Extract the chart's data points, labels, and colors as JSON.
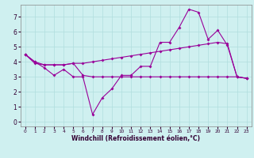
{
  "xlabel": "Windchill (Refroidissement éolien,°C)",
  "background_color": "#cff0f0",
  "grid_color": "#b0dede",
  "line_color": "#990099",
  "xlim": [
    -0.5,
    23.5
  ],
  "ylim": [
    -0.3,
    7.8
  ],
  "xticks": [
    0,
    1,
    2,
    3,
    4,
    5,
    6,
    7,
    8,
    9,
    10,
    11,
    12,
    13,
    14,
    15,
    16,
    17,
    18,
    19,
    20,
    21,
    22,
    23
  ],
  "yticks": [
    0,
    1,
    2,
    3,
    4,
    5,
    6,
    7
  ],
  "line1_x": [
    0,
    1,
    2,
    3,
    4,
    5,
    6,
    7,
    8,
    9,
    10,
    11,
    12,
    13,
    14,
    15,
    16,
    17,
    18,
    19,
    20,
    21,
    22,
    23
  ],
  "line1_y": [
    4.5,
    4.0,
    3.6,
    3.1,
    3.5,
    3.0,
    3.0,
    0.5,
    1.6,
    2.2,
    3.1,
    3.1,
    3.7,
    3.7,
    5.3,
    5.3,
    6.3,
    7.5,
    7.3,
    5.5,
    6.1,
    5.1,
    3.0,
    2.9
  ],
  "line2_x": [
    0,
    1,
    2,
    3,
    4,
    5,
    6,
    7,
    8,
    9,
    10,
    11,
    12,
    13,
    14,
    15,
    16,
    17,
    18,
    19,
    20,
    21,
    22,
    23
  ],
  "line2_y": [
    4.5,
    3.9,
    3.8,
    3.8,
    3.8,
    3.9,
    3.9,
    4.0,
    4.1,
    4.2,
    4.3,
    4.4,
    4.5,
    4.6,
    4.7,
    4.8,
    4.9,
    5.0,
    5.1,
    5.2,
    5.3,
    5.2,
    3.0,
    2.9
  ],
  "line3_x": [
    0,
    1,
    2,
    3,
    4,
    5,
    6,
    7,
    8,
    9,
    10,
    11,
    12,
    13,
    14,
    15,
    16,
    17,
    18,
    19,
    20,
    21,
    22,
    23
  ],
  "line3_y": [
    4.5,
    4.0,
    3.8,
    3.8,
    3.8,
    3.9,
    3.1,
    3.0,
    3.0,
    3.0,
    3.0,
    3.0,
    3.0,
    3.0,
    3.0,
    3.0,
    3.0,
    3.0,
    3.0,
    3.0,
    3.0,
    3.0,
    3.0,
    2.9
  ],
  "xlabel_fontsize": 5.5,
  "tick_fontsize_x": 4.2,
  "tick_fontsize_y": 5.5,
  "marker_size": 2.0,
  "line_width": 0.8
}
